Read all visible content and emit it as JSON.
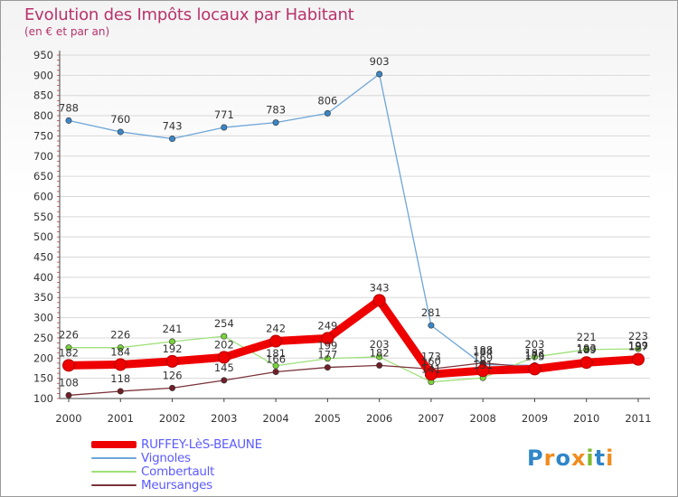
{
  "header": {
    "title": "Evolution des Impôts locaux par Habitant",
    "subtitle": "(en € et par an)"
  },
  "logo": {
    "text": "Proxiti",
    "letter_colors": [
      "#2e86c9",
      "#f08c1e",
      "#2e86c9",
      "#f08c1e",
      "#7fba2e",
      "#2e86c9",
      "#f08c1e"
    ]
  },
  "chart_data": {
    "type": "line",
    "x": [
      "2000",
      "2001",
      "2002",
      "2003",
      "2004",
      "2005",
      "2006",
      "2007",
      "2008",
      "2009",
      "2010",
      "2011"
    ],
    "ylim": [
      100,
      950
    ],
    "yticks": [
      100,
      150,
      200,
      250,
      300,
      350,
      400,
      450,
      500,
      550,
      600,
      650,
      700,
      750,
      800,
      850,
      900,
      950
    ],
    "grid": "horizontal",
    "legend_position": "bottom-left",
    "series": [
      {
        "name": "Vignoles",
        "color": "#6ea6d8",
        "marker": "#3b86c6",
        "values": [
          788,
          760,
          743,
          771,
          783,
          806,
          903,
          281,
          184,
          182,
          189,
          197
        ],
        "labels": [
          "788",
          "760",
          "743",
          "771",
          "783",
          "806",
          "903",
          "281",
          "184",
          "182",
          "189",
          "197"
        ]
      },
      {
        "name": "Combertault",
        "color": "#9ee07a",
        "marker": "#79d23b",
        "values": [
          226,
          226,
          241,
          254,
          181,
          199,
          203,
          141,
          151,
          203,
          221,
          223
        ],
        "labels": [
          "226",
          "226",
          "241",
          "254",
          "181",
          "199",
          "203",
          "141",
          "151",
          "203",
          "221",
          "223"
        ]
      },
      {
        "name": "Meursanges",
        "color": "#7a3238",
        "marker": "#6e1f28",
        "values": [
          108,
          118,
          126,
          145,
          166,
          177,
          182,
          173,
          188,
          176,
          193,
          199
        ],
        "labels": [
          "108",
          "118",
          "126",
          "145",
          "166",
          "177",
          "182",
          "173",
          "188",
          "176",
          "193",
          "199"
        ]
      },
      {
        "name": "RUFFEY-LèS-BEAUNE",
        "color": "#ee0000",
        "marker": "#ee0000",
        "thick": true,
        "values": [
          182,
          184,
          192,
          202,
          242,
          249,
          343,
          160,
          169,
          173,
          189,
          197
        ],
        "labels": [
          "182",
          "184",
          "192",
          "202",
          "242",
          "249",
          "343",
          "160",
          "169",
          "173",
          "189",
          "197"
        ]
      }
    ],
    "legend": [
      "RUFFEY-LèS-BEAUNE",
      "Vignoles",
      "Combertault",
      "Meursanges"
    ]
  }
}
